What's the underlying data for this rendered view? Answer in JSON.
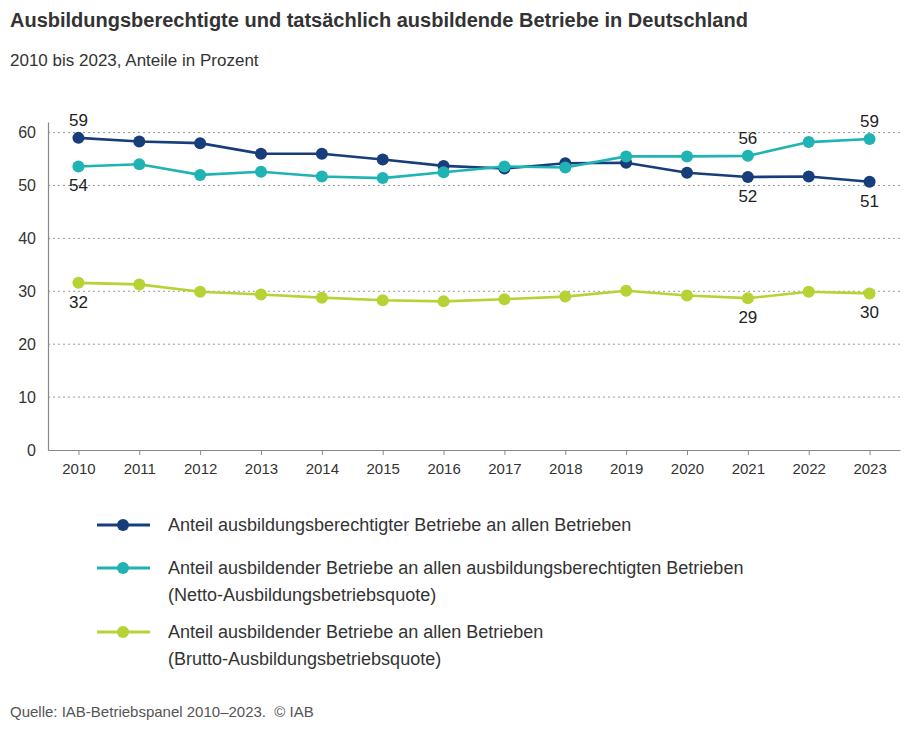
{
  "chart_data": {
    "type": "line",
    "title": "Ausbildungsberechtigte und tatsächlich ausbildende Betriebe in Deutschland",
    "subtitle": "2010 bis 2023, Anteile in Prozent",
    "source": "Quelle: IAB-Betriebspanel 2010–2023.  © IAB",
    "categories": [
      "2010",
      "2011",
      "2012",
      "2013",
      "2014",
      "2015",
      "2016",
      "2017",
      "2018",
      "2019",
      "2020",
      "2021",
      "2022",
      "2023"
    ],
    "ylim": [
      0,
      62
    ],
    "yticks": [
      0,
      10,
      20,
      30,
      40,
      50,
      60
    ],
    "grid": true,
    "legend": "bottom",
    "marker": "circle",
    "series": [
      {
        "name": "Anteil ausbildungsberechtigter Betriebe an allen Betrieben",
        "color": "#173d7a",
        "values": [
          59.0,
          58.3,
          58.0,
          56.0,
          56.0,
          54.9,
          53.7,
          53.2,
          54.2,
          54.3,
          52.4,
          51.6,
          51.7,
          50.7
        ],
        "value_labels": [
          "59",
          null,
          null,
          null,
          null,
          null,
          null,
          null,
          null,
          null,
          null,
          "52",
          null,
          "51"
        ]
      },
      {
        "name": "Anteil ausbildender Betriebe an allen ausbildungsberechtigten Betrieben (Netto-Ausbildungsbetriebsquote)",
        "color": "#1fb3b3",
        "values": [
          53.6,
          54.0,
          52.0,
          52.6,
          51.7,
          51.4,
          52.5,
          53.6,
          53.4,
          55.5,
          55.5,
          55.6,
          58.2,
          58.8
        ],
        "value_labels": [
          "54",
          null,
          null,
          null,
          null,
          null,
          null,
          null,
          null,
          null,
          null,
          "56",
          null,
          "59"
        ]
      },
      {
        "name": "Anteil ausbildender Betriebe an allen Betrieben (Brutto-Ausbildungsbetriebsquote)",
        "color": "#b5d334",
        "values": [
          31.6,
          31.3,
          29.9,
          29.4,
          28.8,
          28.3,
          28.1,
          28.5,
          29.0,
          30.1,
          29.2,
          28.7,
          29.9,
          29.6
        ],
        "value_labels": [
          "32",
          null,
          null,
          null,
          null,
          null,
          null,
          null,
          null,
          null,
          null,
          "29",
          null,
          "30"
        ]
      }
    ]
  }
}
